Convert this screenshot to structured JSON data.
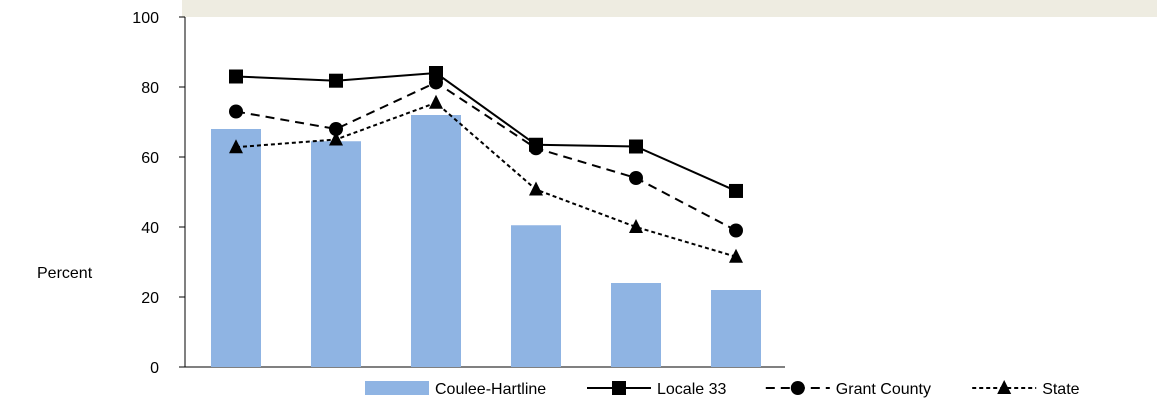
{
  "chart_data": {
    "type": "bar",
    "title": "",
    "xlabel": "",
    "ylabel": "Percent",
    "ylim": [
      0,
      100
    ],
    "yticks": [
      0,
      20,
      40,
      60,
      80,
      100
    ],
    "grid": false,
    "legend_position": "bottom",
    "categories": [
      "",
      "",
      "",
      "",
      "",
      ""
    ],
    "series": [
      {
        "name": "Coulee-Hartline",
        "kind": "bar",
        "color": "#8fb4e3",
        "values": [
          68,
          64.5,
          72,
          40.5,
          24,
          22
        ]
      },
      {
        "name": "Locale 33",
        "kind": "line",
        "line_style": "solid",
        "marker": "square",
        "color": "#000000",
        "values": [
          83,
          81.8,
          84,
          63.5,
          63,
          50.3
        ]
      },
      {
        "name": "Grant County",
        "kind": "line",
        "line_style": "dashed",
        "marker": "circle",
        "color": "#000000",
        "values": [
          73,
          68,
          81.3,
          62.5,
          54,
          39
        ]
      },
      {
        "name": "State",
        "kind": "line",
        "line_style": "dotted",
        "marker": "triangle",
        "color": "#000000",
        "values": [
          62.8,
          65,
          75.5,
          50.7,
          40,
          31.5
        ]
      }
    ]
  },
  "banner": {
    "color": "#eeece1"
  }
}
